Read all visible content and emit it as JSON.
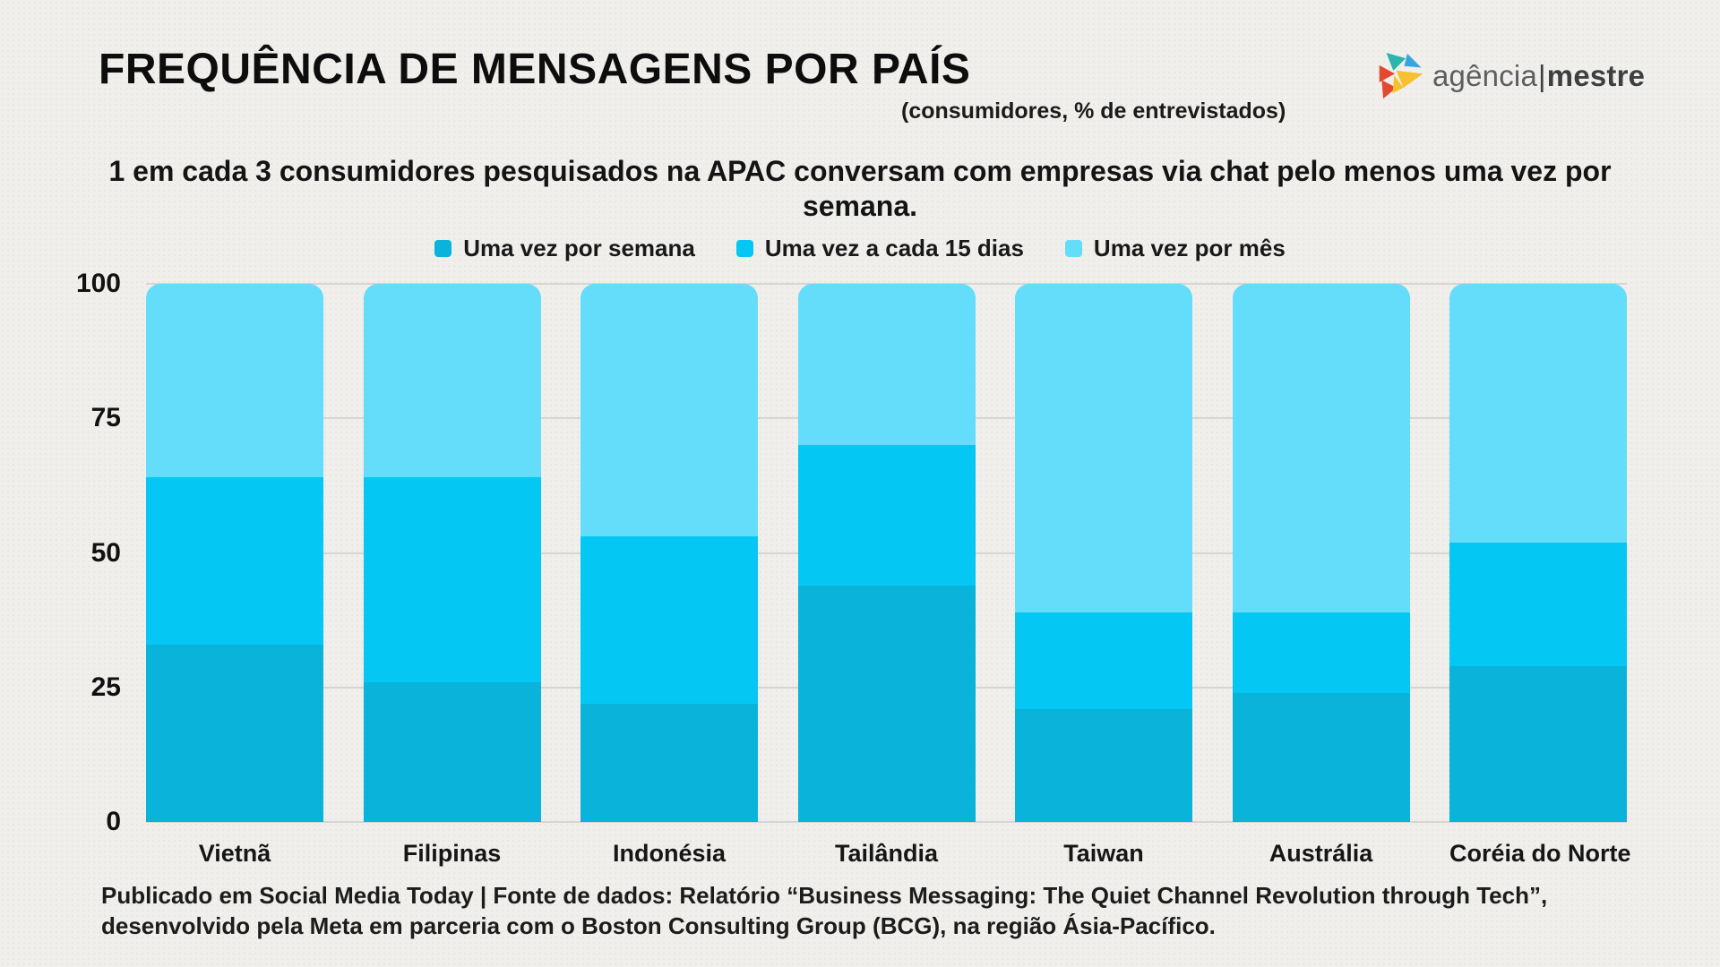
{
  "header": {
    "title": "FREQUÊNCIA DE MENSAGENS POR PAÍS",
    "subtitle": "(consumidores, % de entrevistados)",
    "logo": {
      "name_regular": "agência",
      "separator": "|",
      "name_bold": "mestre"
    }
  },
  "intro": {
    "text": "1 em cada 3 consumidores pesquisados na APAC conversam com empresas via chat pelo menos uma vez por semana."
  },
  "footer": {
    "line1": "Publicado em Social Media Today | Fonte de dados: Relatório “Business Messaging: The Quiet Channel Revolution through Tech”,",
    "line2": "desenvolvido pela Meta em parceria com o Boston Consulting Group (BCG), na região Ásia-Pacífico."
  },
  "chart_data": {
    "type": "bar",
    "stacked": true,
    "title": "FREQUÊNCIA DE MENSAGENS POR PAÍS",
    "subtitle": "(consumidores, % de entrevistados)",
    "categories": [
      "Vietnã",
      "Filipinas",
      "Indonésia",
      "Tailândia",
      "Taiwan",
      "Austrália",
      "Coréia do Norte"
    ],
    "series": [
      {
        "name": "Uma vez por semana",
        "color": "#0ab3d9",
        "values": [
          33,
          26,
          22,
          44,
          21,
          24,
          29
        ]
      },
      {
        "name": "Uma vez a cada 15 dias",
        "color": "#04c8f3",
        "values": [
          31,
          38,
          31,
          26,
          18,
          15,
          23
        ]
      },
      {
        "name": "Uma vez por mês",
        "color": "#63ddfa",
        "values": [
          36,
          36,
          47,
          30,
          61,
          61,
          48
        ]
      }
    ],
    "xlabel": "",
    "ylabel": "",
    "ylim": [
      0,
      100
    ],
    "yticks": [
      0,
      25,
      50,
      75,
      100
    ],
    "grid": true,
    "legend_position": "top"
  },
  "colors": {
    "background": "#f0efec",
    "gridline": "#d6d5d1",
    "text": "#121212"
  }
}
